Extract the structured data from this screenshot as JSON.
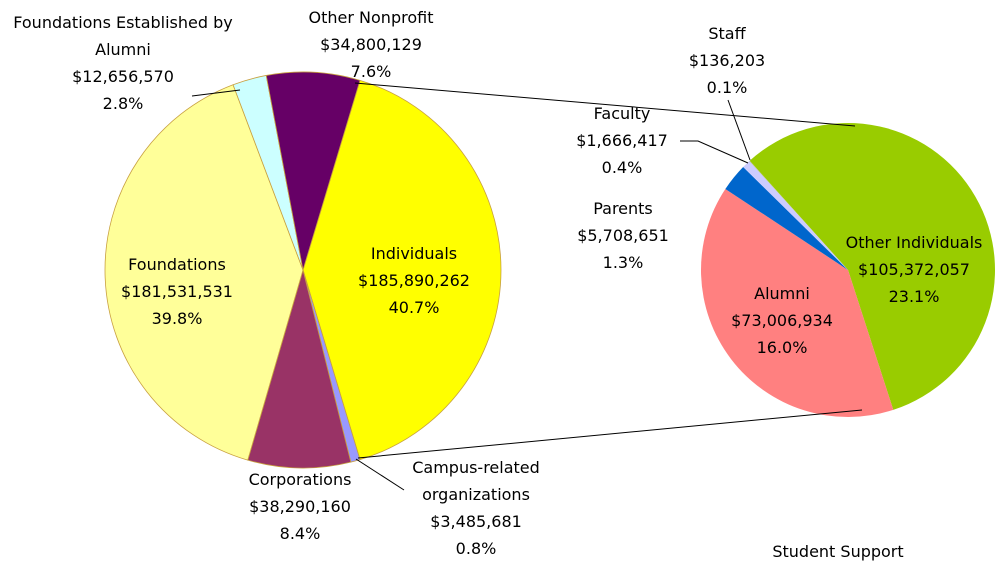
{
  "chart_data": {
    "type": "pie",
    "title": "Student Support",
    "categories": [
      "Individuals",
      "Campus-related organizations",
      "Corporations",
      "Foundations",
      "Foundations Established by Alumni",
      "Other Nonprofit"
    ],
    "values": [
      185890262,
      3485681,
      38290160,
      181531531,
      12656570,
      34800129
    ],
    "value_labels": [
      "$185,890,262",
      "$3,485,681",
      "$38,290,160",
      "$181,531,531",
      "$12,656,570",
      "$34,800,129"
    ],
    "percents": [
      40.7,
      0.8,
      8.4,
      39.8,
      2.8,
      7.6
    ],
    "percent_labels": [
      "40.7%",
      "0.8%",
      "8.4%",
      "39.8%",
      "2.8%",
      "7.6%"
    ],
    "colors": [
      "#ffff00",
      "#9999ff",
      "#993366",
      "#ffff99",
      "#ccffff",
      "#660066"
    ],
    "secondary": {
      "type": "pie",
      "categories": [
        "Other Individuals",
        "Alumni",
        "Parents",
        "Faculty",
        "Staff"
      ],
      "values": [
        105372057,
        73006934,
        5708651,
        1666417,
        136203
      ],
      "value_labels": [
        "$105,372,057",
        "$73,006,934",
        "$5,708,651",
        "$1,666,417",
        "$136,203"
      ],
      "percents": [
        23.1,
        16,
        1.3,
        0.4,
        0.1
      ],
      "percent_labels": [
        "23.1%",
        "16.0%",
        "1.3%",
        "0.4%",
        "0.1%"
      ],
      "colors": [
        "#99cc00",
        "#ff8080",
        "#0066cc",
        "#ccccff",
        "#c0c0c0"
      ]
    }
  }
}
